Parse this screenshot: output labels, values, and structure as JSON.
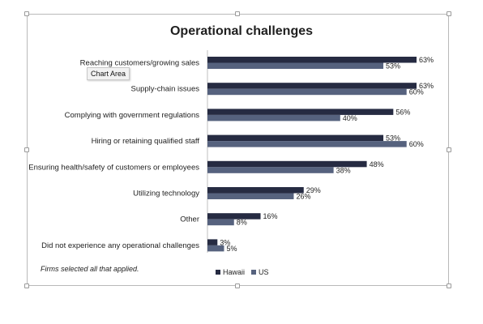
{
  "tooltip": "Chart Area",
  "footnote": "Firms selected all that applied.",
  "colors": {
    "hawaii": "#262b42",
    "us": "#56627e"
  },
  "chart_data": {
    "type": "bar",
    "orientation": "horizontal",
    "title": "Operational challenges",
    "categories": [
      "Reaching customers/growing sales",
      "Supply-chain issues",
      "Complying with government regulations",
      "Hiring or retaining qualified staff",
      "Ensuring health/safety of customers or employees",
      "Utilizing technology",
      "Other",
      "Did not experience any operational challenges"
    ],
    "series": [
      {
        "name": "Hawaii",
        "values": [
          63,
          63,
          56,
          53,
          48,
          29,
          16,
          3
        ]
      },
      {
        "name": "US",
        "values": [
          53,
          60,
          40,
          60,
          38,
          26,
          8,
          5
        ]
      }
    ],
    "value_suffix": "%",
    "xlim": [
      0,
      63
    ],
    "legend_position": "bottom",
    "grid": false
  }
}
